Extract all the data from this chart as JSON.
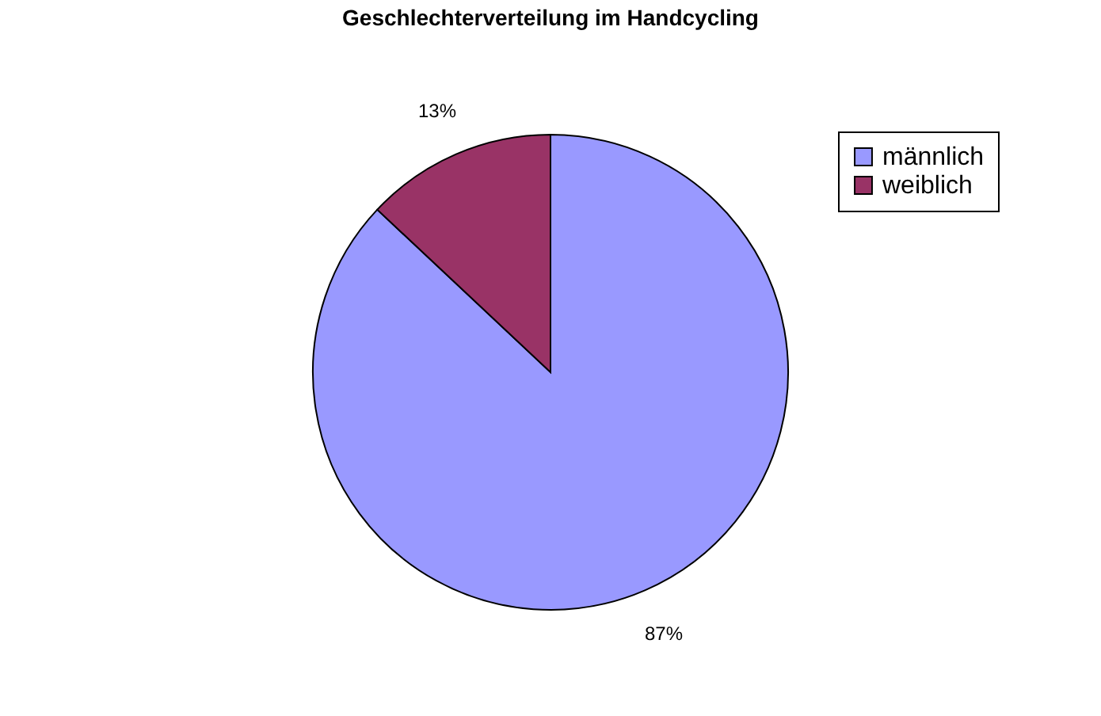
{
  "chart_data": {
    "type": "pie",
    "title": "Geschlechterverteilung im Handcycling",
    "categories": [
      "männlich",
      "weiblich"
    ],
    "values": [
      87,
      13
    ],
    "colors": [
      "#9999ff",
      "#993366"
    ],
    "value_labels": [
      "87%",
      "13%"
    ],
    "legend": "top right"
  }
}
